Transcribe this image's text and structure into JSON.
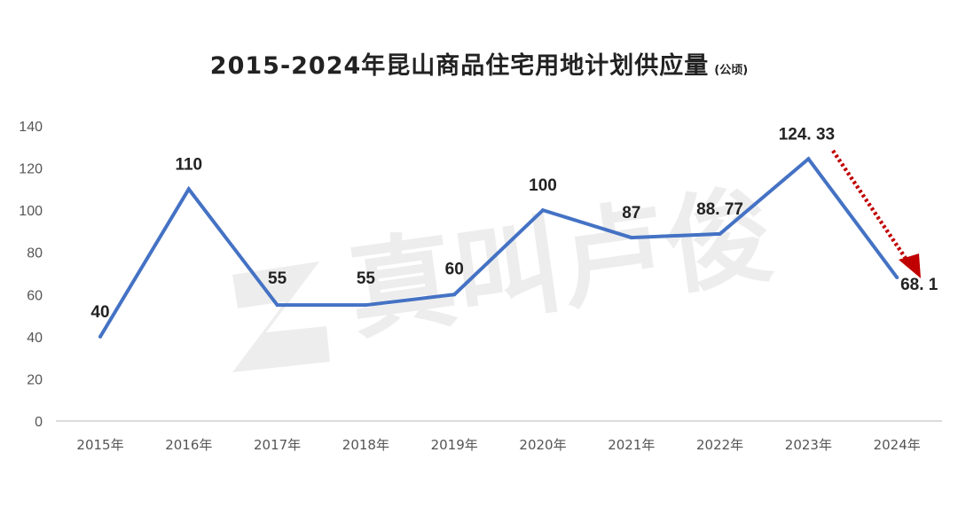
{
  "chart_data": {
    "type": "line",
    "title": "2015-2024年昆山商品住宅用地计划供应量",
    "unit": "(公顷)",
    "categories": [
      "2015年",
      "2016年",
      "2017年",
      "2018年",
      "2019年",
      "2020年",
      "2021年",
      "2022年",
      "2023年",
      "2024年"
    ],
    "values": [
      40,
      110,
      55,
      55,
      60,
      100,
      87,
      88.77,
      124.33,
      68.1
    ],
    "data_labels": [
      "40",
      "110",
      "55",
      "55",
      "60",
      "100",
      "87",
      "88. 77",
      "124. 33",
      "68. 1"
    ],
    "y_ticks": [
      0,
      20,
      40,
      60,
      80,
      100,
      120,
      140
    ],
    "ylim": [
      0,
      140
    ],
    "xlabel": "",
    "ylabel": "",
    "grid": false,
    "legend": "none",
    "watermark": "真叫卢俊",
    "colors": {
      "line": "#4472c4",
      "arrow": "#c00000",
      "axis": "#c8c8c8"
    }
  }
}
